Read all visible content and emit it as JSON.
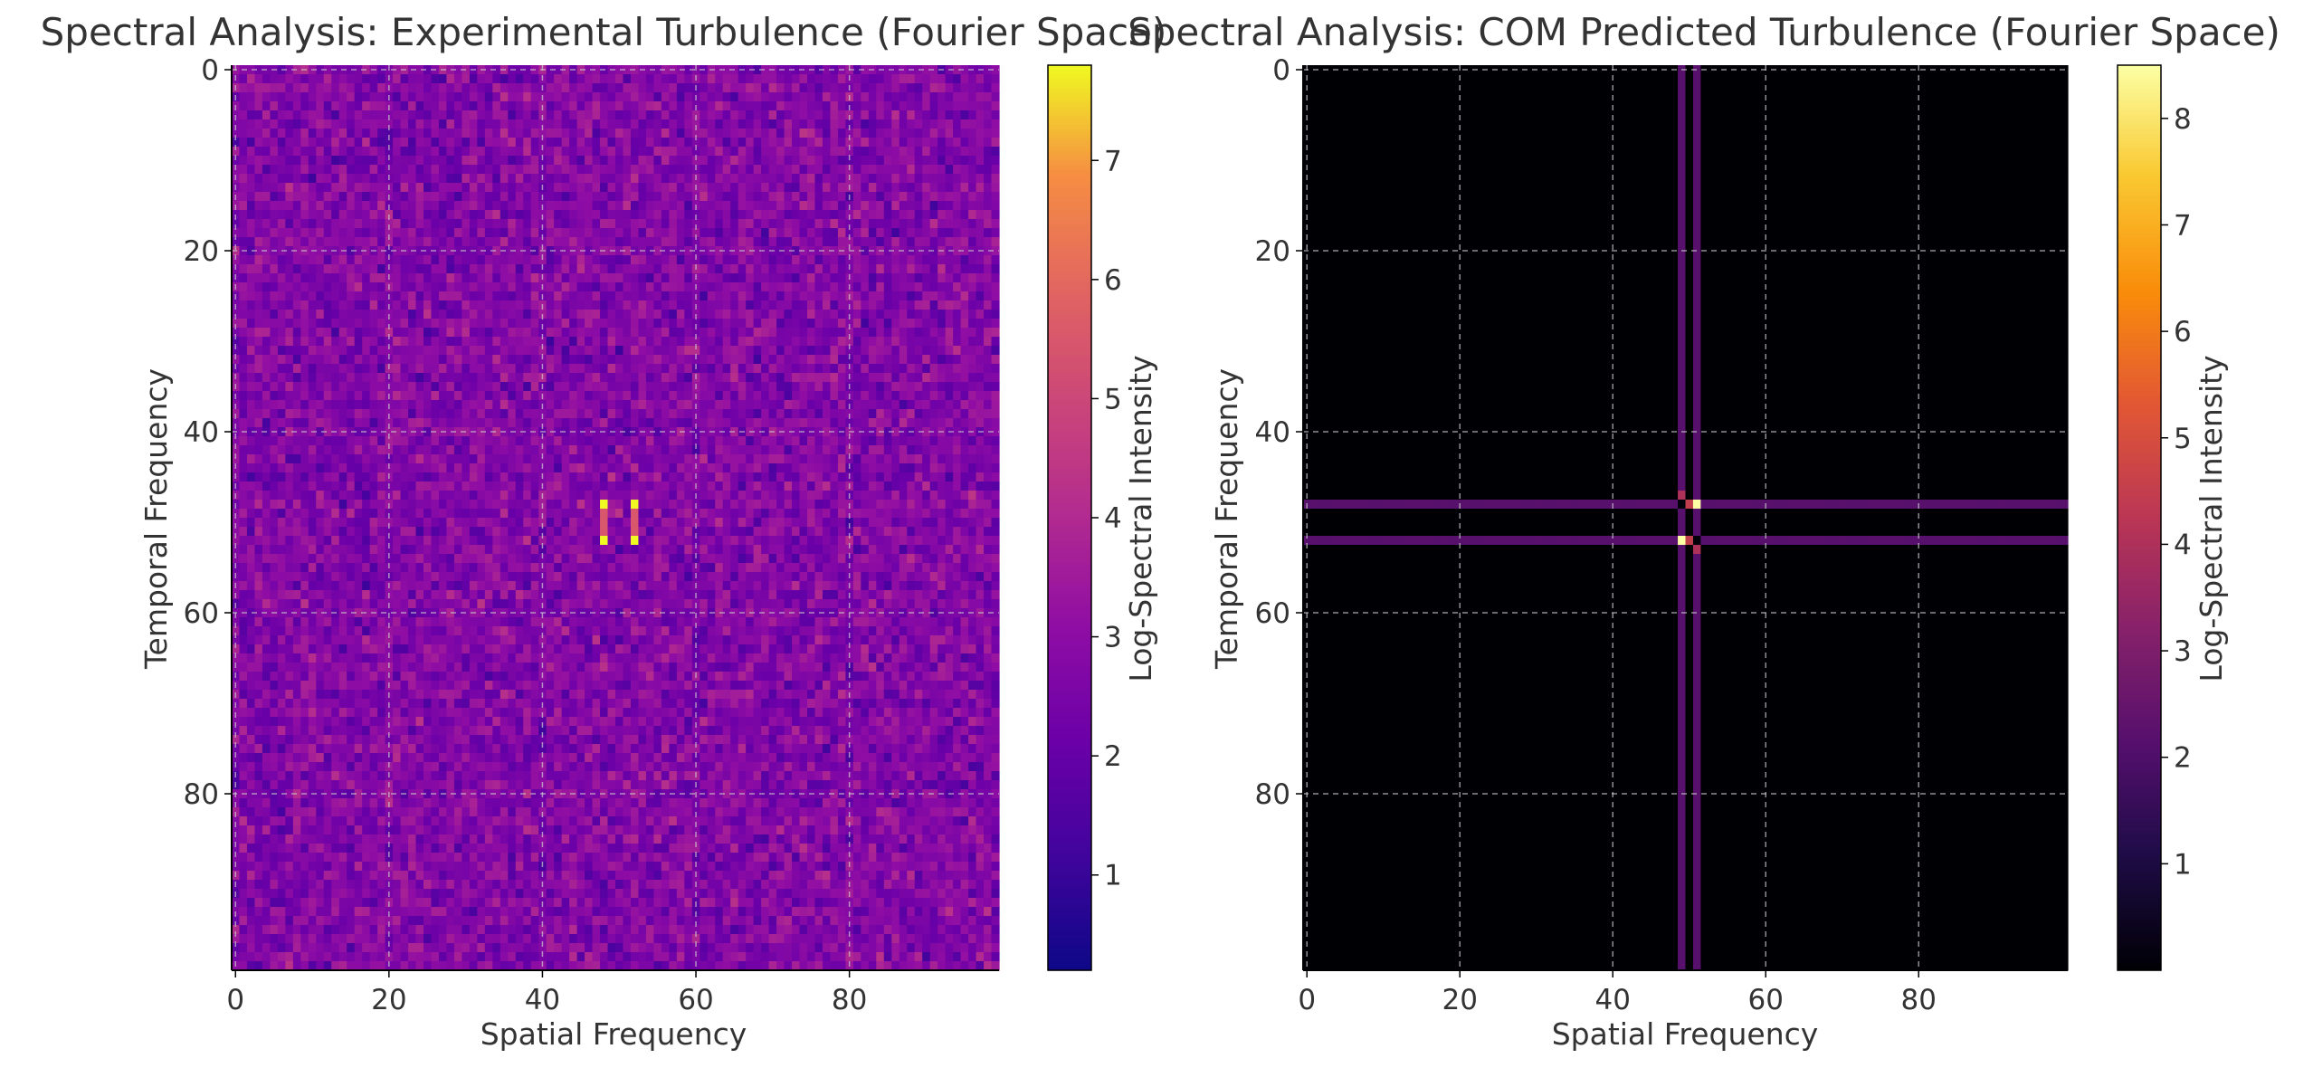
{
  "colors": {
    "text": "#333333",
    "grid": "#cccccc",
    "axis": "#000000",
    "background": "#ffffff"
  },
  "chart_data": [
    {
      "type": "heatmap",
      "title": "Spectral Analysis: Experimental Turbulence (Fourier Space)",
      "xlabel": "Spatial Frequency",
      "ylabel": "Temporal Frequency",
      "colormap": "plasma",
      "grid": true,
      "matrix_size": [
        100,
        100
      ],
      "x_ticks": [
        0,
        20,
        40,
        60,
        80
      ],
      "y_ticks": [
        0,
        20,
        40,
        60,
        80
      ],
      "colorbar": {
        "label": "Log-Spectral Intensity",
        "range": [
          0.2,
          7.8
        ],
        "ticks": [
          1,
          2,
          3,
          4,
          5,
          6,
          7
        ]
      },
      "background_distribution": {
        "typical_value": 3.0,
        "range": [
          1.0,
          4.5
        ]
      },
      "peaks": [
        {
          "x": 48,
          "y": 48,
          "value": 7.8
        },
        {
          "x": 52,
          "y": 48,
          "value": 7.8
        },
        {
          "x": 48,
          "y": 52,
          "value": 7.8
        },
        {
          "x": 52,
          "y": 52,
          "value": 7.8
        },
        {
          "x": 48,
          "y": 49,
          "value": 5.5
        },
        {
          "x": 48,
          "y": 50,
          "value": 5.5
        },
        {
          "x": 48,
          "y": 51,
          "value": 5.5
        },
        {
          "x": 52,
          "y": 49,
          "value": 5.5
        },
        {
          "x": 52,
          "y": 50,
          "value": 5.5
        },
        {
          "x": 52,
          "y": 51,
          "value": 5.5
        }
      ]
    },
    {
      "type": "heatmap",
      "title": "Spectral Analysis: COM Predicted Turbulence (Fourier Space)",
      "xlabel": "Spatial Frequency",
      "ylabel": "Temporal Frequency",
      "colormap": "inferno",
      "grid": true,
      "matrix_size": [
        100,
        100
      ],
      "x_ticks": [
        0,
        20,
        40,
        60,
        80
      ],
      "y_ticks": [
        0,
        20,
        40,
        60,
        80
      ],
      "colorbar": {
        "label": "Log-Spectral Intensity",
        "range": [
          0,
          8.5
        ],
        "ticks": [
          1,
          2,
          3,
          4,
          5,
          6,
          7,
          8
        ]
      },
      "background_value": 0.0,
      "band_rows": [
        48,
        52
      ],
      "band_cols": [
        49,
        51
      ],
      "band_value": 2.2,
      "peaks": [
        {
          "x": 51,
          "y": 48,
          "value": 8.5
        },
        {
          "x": 49,
          "y": 52,
          "value": 8.5
        },
        {
          "x": 49,
          "y": 48,
          "value": 0.1
        },
        {
          "x": 51,
          "y": 52,
          "value": 0.1
        },
        {
          "x": 50,
          "y": 48,
          "value": 4.5
        },
        {
          "x": 50,
          "y": 52,
          "value": 4.5
        },
        {
          "x": 49,
          "y": 47,
          "value": 4.0
        },
        {
          "x": 51,
          "y": 53,
          "value": 4.0
        }
      ]
    }
  ]
}
